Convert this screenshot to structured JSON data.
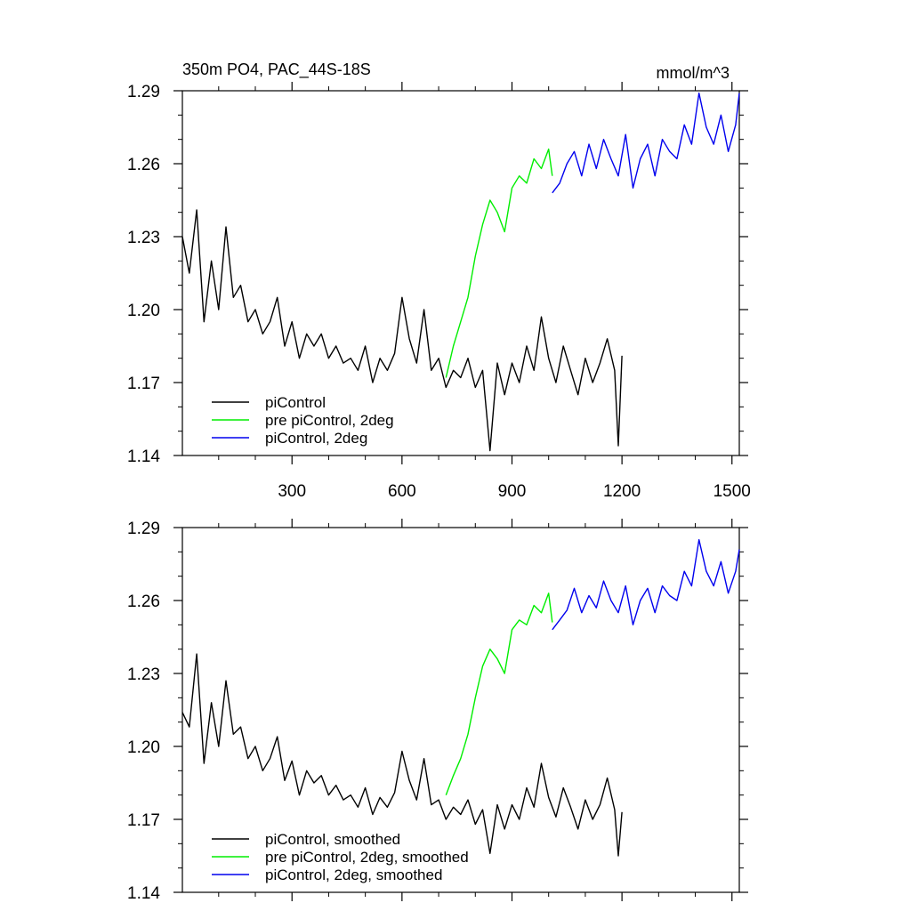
{
  "colors": {
    "piControl": "#000000",
    "pre_piControl_2deg": "#00ee00",
    "piControl_2deg": "#0000ee",
    "frame": "#000000",
    "background": "#ffffff"
  },
  "chart_data": [
    {
      "type": "line",
      "panel": "top",
      "title": "350m PO4, PAC_44S-18S",
      "units": "mmol/m^3",
      "xlim": [
        1,
        1520
      ],
      "ylim": [
        1.14,
        1.29
      ],
      "xticks": [
        300,
        600,
        900,
        1200,
        1500
      ],
      "yticks": [
        1.14,
        1.17,
        1.2,
        1.23,
        1.26,
        1.29
      ],
      "xtick_labels": [
        "300",
        "600",
        "900",
        "1200",
        "1500"
      ],
      "ytick_labels": [
        "1.14",
        "1.17",
        "1.20",
        "1.23",
        "1.26",
        "1.29"
      ],
      "grid": false,
      "legend": "bottom-left",
      "series": [
        {
          "name": "piControl",
          "color_key": "piControl",
          "x": [
            1,
            20,
            40,
            60,
            80,
            100,
            120,
            140,
            160,
            180,
            200,
            220,
            240,
            260,
            280,
            300,
            320,
            340,
            360,
            380,
            400,
            420,
            440,
            460,
            480,
            500,
            520,
            540,
            560,
            580,
            600,
            620,
            640,
            660,
            680,
            700,
            720,
            740,
            760,
            780,
            800,
            820,
            840,
            860,
            880,
            900,
            920,
            940,
            960,
            980,
            1000,
            1020,
            1040,
            1060,
            1080,
            1100,
            1120,
            1140,
            1160,
            1180,
            1190,
            1200
          ],
          "values": [
            1.23,
            1.215,
            1.241,
            1.195,
            1.22,
            1.2,
            1.234,
            1.205,
            1.21,
            1.195,
            1.2,
            1.19,
            1.195,
            1.205,
            1.185,
            1.195,
            1.18,
            1.19,
            1.185,
            1.19,
            1.18,
            1.185,
            1.178,
            1.18,
            1.175,
            1.185,
            1.17,
            1.18,
            1.175,
            1.182,
            1.205,
            1.188,
            1.178,
            1.2,
            1.175,
            1.18,
            1.168,
            1.175,
            1.172,
            1.18,
            1.168,
            1.175,
            1.142,
            1.178,
            1.165,
            1.178,
            1.17,
            1.185,
            1.175,
            1.197,
            1.18,
            1.17,
            1.185,
            1.175,
            1.165,
            1.18,
            1.17,
            1.178,
            1.188,
            1.175,
            1.144,
            1.181
          ]
        },
        {
          "name": "pre piControl, 2deg",
          "color_key": "pre_piControl_2deg",
          "x": [
            720,
            740,
            760,
            780,
            800,
            820,
            840,
            860,
            880,
            900,
            920,
            940,
            960,
            980,
            1000,
            1010
          ],
          "values": [
            1.172,
            1.185,
            1.195,
            1.205,
            1.222,
            1.235,
            1.245,
            1.24,
            1.232,
            1.25,
            1.255,
            1.252,
            1.262,
            1.258,
            1.266,
            1.255
          ]
        },
        {
          "name": "piControl, 2deg",
          "color_key": "piControl_2deg",
          "x": [
            1010,
            1030,
            1050,
            1070,
            1090,
            1110,
            1130,
            1150,
            1170,
            1190,
            1210,
            1230,
            1250,
            1270,
            1290,
            1310,
            1330,
            1350,
            1370,
            1390,
            1410,
            1430,
            1450,
            1470,
            1490,
            1510,
            1520
          ],
          "values": [
            1.248,
            1.252,
            1.26,
            1.265,
            1.255,
            1.268,
            1.258,
            1.27,
            1.262,
            1.255,
            1.272,
            1.25,
            1.262,
            1.268,
            1.255,
            1.27,
            1.265,
            1.262,
            1.276,
            1.268,
            1.289,
            1.275,
            1.268,
            1.28,
            1.265,
            1.276,
            1.289
          ]
        }
      ],
      "legend_entries": [
        "piControl",
        "pre piControl, 2deg",
        "piControl, 2deg"
      ]
    },
    {
      "type": "line",
      "panel": "bottom",
      "title": "",
      "xlim": [
        1,
        1520
      ],
      "ylim": [
        1.14,
        1.29
      ],
      "xticks": [
        300,
        600,
        900,
        1200,
        1500
      ],
      "yticks": [
        1.14,
        1.17,
        1.2,
        1.23,
        1.26,
        1.29
      ],
      "ytick_labels": [
        "1.14",
        "1.17",
        "1.20",
        "1.23",
        "1.26",
        "1.29"
      ],
      "grid": false,
      "legend": "bottom-left",
      "series": [
        {
          "name": "piControl, smoothed",
          "color_key": "piControl",
          "x": [
            1,
            20,
            40,
            60,
            80,
            100,
            120,
            140,
            160,
            180,
            200,
            220,
            240,
            260,
            280,
            300,
            320,
            340,
            360,
            380,
            400,
            420,
            440,
            460,
            480,
            500,
            520,
            540,
            560,
            580,
            600,
            620,
            640,
            660,
            680,
            700,
            720,
            740,
            760,
            780,
            800,
            820,
            840,
            860,
            880,
            900,
            920,
            940,
            960,
            980,
            1000,
            1020,
            1040,
            1060,
            1080,
            1100,
            1120,
            1140,
            1160,
            1180,
            1190,
            1200
          ],
          "values": [
            1.214,
            1.208,
            1.238,
            1.193,
            1.218,
            1.2,
            1.227,
            1.205,
            1.208,
            1.195,
            1.2,
            1.19,
            1.195,
            1.204,
            1.186,
            1.194,
            1.18,
            1.19,
            1.185,
            1.188,
            1.18,
            1.184,
            1.178,
            1.18,
            1.175,
            1.183,
            1.172,
            1.179,
            1.175,
            1.181,
            1.198,
            1.186,
            1.178,
            1.195,
            1.176,
            1.178,
            1.17,
            1.175,
            1.172,
            1.178,
            1.168,
            1.174,
            1.156,
            1.176,
            1.166,
            1.176,
            1.17,
            1.183,
            1.175,
            1.193,
            1.179,
            1.171,
            1.183,
            1.175,
            1.166,
            1.178,
            1.17,
            1.176,
            1.187,
            1.174,
            1.155,
            1.173
          ]
        },
        {
          "name": "pre piControl, 2deg, smoothed",
          "color_key": "pre_piControl_2deg",
          "x": [
            720,
            740,
            760,
            780,
            800,
            820,
            840,
            860,
            880,
            900,
            920,
            940,
            960,
            980,
            1000,
            1010
          ],
          "values": [
            1.18,
            1.188,
            1.195,
            1.205,
            1.22,
            1.233,
            1.24,
            1.236,
            1.23,
            1.248,
            1.252,
            1.25,
            1.258,
            1.255,
            1.263,
            1.251
          ]
        },
        {
          "name": "piControl, 2deg, smoothed",
          "color_key": "piControl_2deg",
          "x": [
            1010,
            1030,
            1050,
            1070,
            1090,
            1110,
            1130,
            1150,
            1170,
            1190,
            1210,
            1230,
            1250,
            1270,
            1290,
            1310,
            1330,
            1350,
            1370,
            1390,
            1410,
            1430,
            1450,
            1470,
            1490,
            1510,
            1520
          ],
          "values": [
            1.248,
            1.252,
            1.256,
            1.265,
            1.255,
            1.262,
            1.257,
            1.268,
            1.26,
            1.255,
            1.266,
            1.25,
            1.26,
            1.265,
            1.255,
            1.266,
            1.262,
            1.26,
            1.272,
            1.266,
            1.285,
            1.272,
            1.266,
            1.276,
            1.263,
            1.272,
            1.281
          ]
        }
      ],
      "legend_entries": [
        "piControl, smoothed",
        "pre piControl, 2deg, smoothed",
        "piControl, 2deg, smoothed"
      ]
    }
  ]
}
